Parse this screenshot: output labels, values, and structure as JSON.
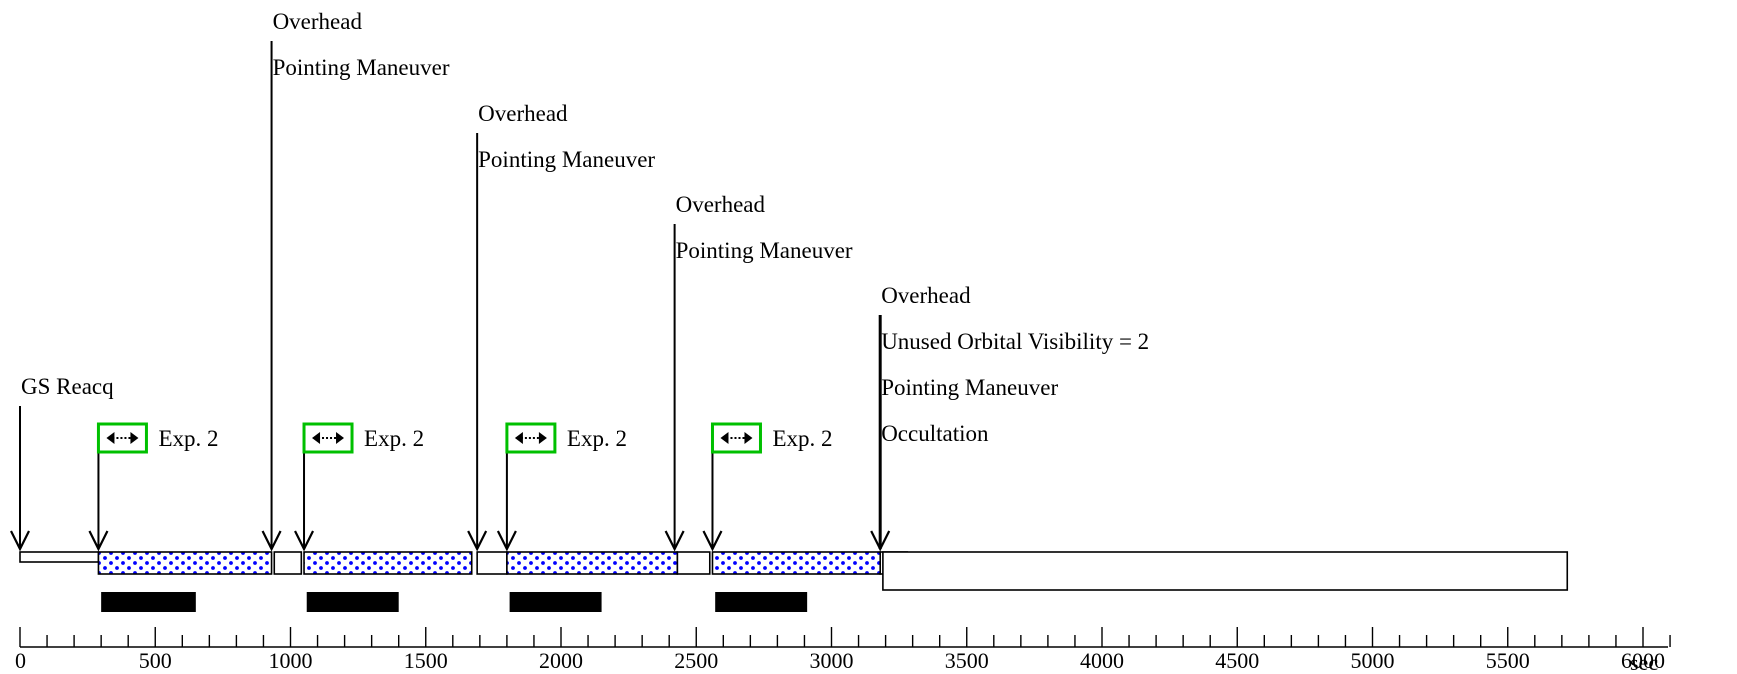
{
  "diagram": {
    "time_unit": "sec",
    "axis": {
      "min": 0,
      "max": 6000,
      "major_step": 500,
      "minor_step": 100,
      "tick_labels": [
        "0",
        "500",
        "1000",
        "1500",
        "2000",
        "2500",
        "3000",
        "3500",
        "4000",
        "4500",
        "5000",
        "5500",
        "6000"
      ]
    },
    "markers": [
      {
        "t": 0,
        "labels": [
          "GS Reacq"
        ]
      },
      {
        "t": 930,
        "labels": [
          "Overhead",
          "Pointing Maneuver"
        ]
      },
      {
        "t": 1690,
        "labels": [
          "Overhead",
          "Pointing Maneuver"
        ]
      },
      {
        "t": 2420,
        "labels": [
          "Overhead",
          "Pointing Maneuver"
        ]
      },
      {
        "t": 3180,
        "labels": [
          "Overhead",
          "Unused Orbital Visibility = 2",
          "Pointing Maneuver",
          "Occultation"
        ]
      }
    ],
    "exposures": [
      {
        "label": "Exp. 2",
        "start": 290,
        "end": 930,
        "readout_start": 300,
        "readout_end": 650
      },
      {
        "label": "Exp. 2",
        "start": 1050,
        "end": 1670,
        "readout_start": 1060,
        "readout_end": 1400
      },
      {
        "label": "Exp. 2",
        "start": 1800,
        "end": 2430,
        "readout_start": 1810,
        "readout_end": 2150
      },
      {
        "label": "Exp. 2",
        "start": 2560,
        "end": 3180,
        "readout_start": 2570,
        "readout_end": 2910
      }
    ],
    "overhead_segments": [
      {
        "start": 0,
        "end": 290
      },
      {
        "start": 940,
        "end": 1040
      },
      {
        "start": 1690,
        "end": 1800
      },
      {
        "start": 2430,
        "end": 2550
      },
      {
        "start": 3180,
        "end": 3280
      }
    ],
    "occultation": {
      "start": 3190,
      "end": 5720
    },
    "colors": {
      "exposure_dots": "#0000ff",
      "exposure_box_border": "#00c000",
      "line": "#000000"
    }
  }
}
